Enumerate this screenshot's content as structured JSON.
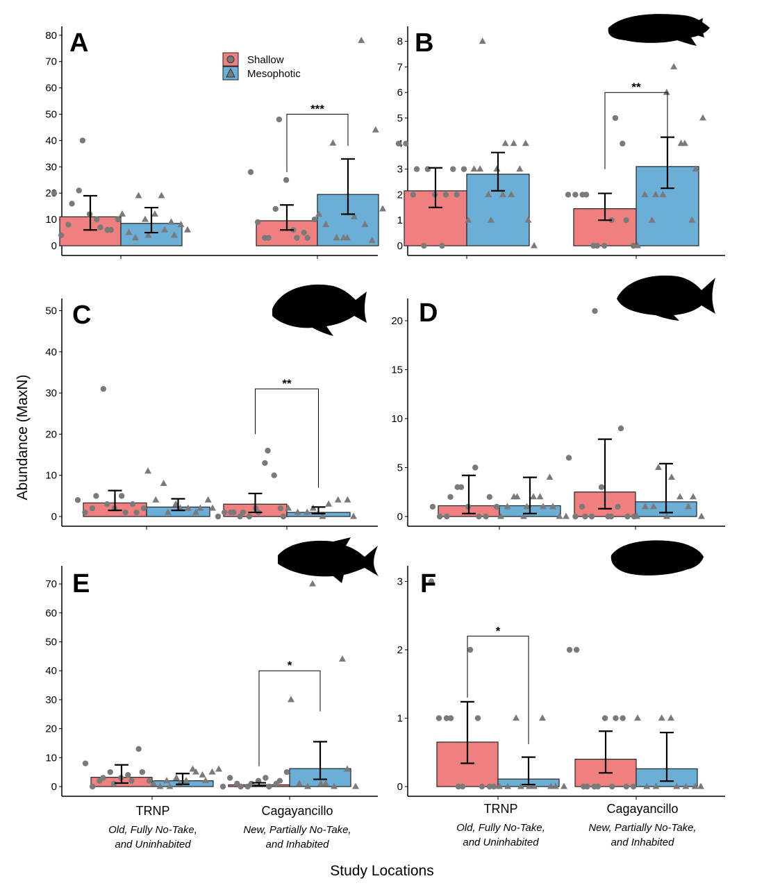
{
  "y_axis_label": "Abundance (MaxN)",
  "x_axis_label": "Study Locations",
  "legend": {
    "items": [
      {
        "label": "Shallow",
        "color": "#F08080",
        "shape": "circle"
      },
      {
        "label": "Mesophotic",
        "color": "#6BAED6",
        "shape": "triangle"
      }
    ]
  },
  "categories": [
    {
      "name": "TRNP",
      "line1": "Old, Fully No-Take,",
      "line2": "and Uninhabited"
    },
    {
      "name": "Cagayancillo",
      "line1": "New, Partially No-Take,",
      "line2": "and Inhabited"
    }
  ],
  "chart_data": [
    {
      "type": "bar",
      "panel": "A",
      "categories": [
        "TRNP",
        "Cagayancillo"
      ],
      "ylim": [
        0,
        82
      ],
      "yticks": [
        0,
        10,
        20,
        30,
        40,
        50,
        60,
        70,
        80
      ],
      "series": [
        {
          "name": "Shallow",
          "values": [
            11,
            9.5
          ],
          "err_low": [
            6,
            6
          ],
          "err_high": [
            19,
            15.5
          ],
          "points": [
            [
              20,
              4,
              8,
              16,
              21,
              40,
              12,
              10,
              7,
              6,
              6,
              10
            ],
            [
              28,
              9,
              3,
              3,
              14,
              48,
              25,
              6,
              3,
              5,
              3,
              10
            ]
          ]
        },
        {
          "name": "Mesophotic",
          "values": [
            8.5,
            19.5
          ],
          "err_low": [
            5,
            12
          ],
          "err_high": [
            14.5,
            33
          ],
          "points": [
            [
              12,
              5,
              3,
              19,
              10,
              4,
              12,
              19,
              6,
              9,
              4,
              8,
              6
            ],
            [
              12,
              8,
              39,
              3,
              3,
              3,
              11,
              78,
              8,
              2,
              44,
              14
            ]
          ]
        }
      ],
      "significance": {
        "category": "Cagayancillo",
        "label": "***",
        "bar_y": 50,
        "left_y": 28,
        "right_y": 38
      }
    },
    {
      "type": "bar",
      "panel": "B",
      "categories": [
        "TRNP",
        "Cagayancillo"
      ],
      "ylim": [
        0,
        8.4
      ],
      "yticks": [
        0,
        1,
        2,
        3,
        4,
        5,
        6,
        7,
        8
      ],
      "series": [
        {
          "name": "Shallow",
          "values": [
            2.15,
            1.45
          ],
          "err_low": [
            1.5,
            1
          ],
          "err_high": [
            3.05,
            2.05
          ],
          "points": [
            [
              4,
              4,
              2,
              3,
              0,
              3,
              2,
              0,
              2,
              3,
              2,
              3
            ],
            [
              2,
              2,
              2,
              2,
              0,
              0,
              0,
              1,
              5,
              4,
              1,
              0
            ]
          ]
        },
        {
          "name": "Mesophotic",
          "values": [
            2.8,
            3.1
          ],
          "err_low": [
            2.15,
            2.25
          ],
          "err_high": [
            3.65,
            4.25
          ],
          "points": [
            [
              1,
              3,
              3,
              8,
              2,
              1,
              3,
              2,
              4,
              2,
              4,
              3,
              4,
              1,
              0
            ],
            [
              0,
              2,
              1,
              2,
              2,
              6,
              7,
              4,
              4,
              1,
              3,
              5
            ]
          ]
        }
      ],
      "significance": {
        "category": "Cagayancillo",
        "label": "**",
        "bar_y": 6,
        "left_y": 3,
        "right_y": 4.2
      }
    },
    {
      "type": "bar",
      "panel": "C",
      "categories": [
        "TRNP",
        "Cagayancillo"
      ],
      "ylim": [
        0,
        52
      ],
      "yticks": [
        0,
        10,
        20,
        30,
        40,
        50
      ],
      "series": [
        {
          "name": "Shallow",
          "values": [
            3.3,
            3
          ],
          "err_low": [
            1.5,
            1
          ],
          "err_high": [
            6.3,
            5.6
          ],
          "points": [
            [
              4,
              1,
              2,
              5,
              31,
              3,
              2,
              5,
              1,
              3,
              1,
              2
            ],
            [
              0,
              1,
              1,
              1,
              0,
              1,
              0,
              2,
              1,
              13,
              16,
              10,
              2,
              0
            ]
          ]
        },
        {
          "name": "Mesophotic",
          "values": [
            2.3,
            1
          ],
          "err_low": [
            1.5,
            0.7
          ],
          "err_high": [
            4.3,
            2.3
          ],
          "points": [
            [
              11,
              4,
              8,
              1,
              3,
              2,
              2,
              1,
              2,
              4,
              2
            ],
            [
              2,
              1,
              1,
              2,
              0,
              3,
              4,
              4,
              0
            ]
          ]
        }
      ],
      "significance": {
        "category": "Cagayancillo",
        "label": "**",
        "bar_y": 31,
        "left_y": 20,
        "right_y": 7
      }
    },
    {
      "type": "bar",
      "panel": "D",
      "categories": [
        "TRNP",
        "Cagayancillo"
      ],
      "ylim": [
        0,
        22
      ],
      "yticks": [
        0,
        5,
        10,
        15,
        20
      ],
      "series": [
        {
          "name": "Shallow",
          "values": [
            1.1,
            2.5
          ],
          "err_low": [
            0.3,
            0.8
          ],
          "err_high": [
            4.2,
            7.9
          ],
          "points": [
            [
              1,
              0,
              0,
              2,
              3,
              3,
              1,
              5,
              0,
              0,
              2,
              1
            ],
            [
              6,
              0,
              1,
              0,
              0,
              21,
              3,
              0,
              0,
              1,
              9,
              0,
              0
            ]
          ]
        },
        {
          "name": "Mesophotic",
          "values": [
            1.1,
            1.5
          ],
          "err_low": [
            0.3,
            0.4
          ],
          "err_high": [
            4,
            5.4
          ],
          "points": [
            [
              0,
              1,
              2,
              2,
              0,
              1,
              2,
              2,
              1,
              4,
              1,
              0,
              0
            ],
            [
              0,
              1,
              1,
              5,
              0,
              4,
              2,
              1,
              2,
              0
            ]
          ]
        }
      ],
      "significance": null
    },
    {
      "type": "bar",
      "panel": "E",
      "categories": [
        "TRNP",
        "Cagayancillo"
      ],
      "ylim": [
        0,
        74
      ],
      "yticks": [
        0,
        10,
        20,
        30,
        40,
        50,
        60,
        70
      ],
      "series": [
        {
          "name": "Shallow",
          "values": [
            3.2,
            0.6
          ],
          "err_low": [
            1.2,
            0.2
          ],
          "err_high": [
            7.5,
            1.3
          ],
          "points": [
            [
              8,
              0,
              2,
              3,
              5,
              1,
              3,
              4,
              2,
              13,
              5,
              2
            ],
            [
              0,
              3,
              1,
              0,
              0,
              1,
              2,
              3,
              0,
              1,
              2,
              5
            ]
          ]
        },
        {
          "name": "Mesophotic",
          "values": [
            2,
            6.2
          ],
          "err_low": [
            0.8,
            2.5
          ],
          "err_high": [
            4.5,
            15.5
          ],
          "points": [
            [
              1,
              0,
              2,
              0,
              3,
              1,
              2,
              6,
              5,
              4,
              2,
              5,
              6
            ],
            [
              30,
              1,
              0,
              70,
              1,
              1,
              0,
              44,
              6,
              0
            ]
          ]
        }
      ],
      "significance": {
        "category": "Cagayancillo",
        "label": "*",
        "bar_y": 40,
        "left_y": 7,
        "right_y": 26
      }
    },
    {
      "type": "bar",
      "panel": "F",
      "categories": [
        "TRNP",
        "Cagayancillo"
      ],
      "ylim": [
        0,
        3.2
      ],
      "yticks": [
        0,
        1,
        2,
        3
      ],
      "series": [
        {
          "name": "Shallow",
          "values": [
            0.65,
            0.4
          ],
          "err_low": [
            0.34,
            0.2
          ],
          "err_high": [
            1.24,
            0.81
          ],
          "points": [
            [
              3,
              1,
              1,
              1,
              0,
              0,
              2,
              1,
              0,
              0,
              0
            ],
            [
              2,
              2,
              0,
              0,
              0,
              0,
              1,
              0,
              1,
              1,
              0,
              0
            ]
          ]
        },
        {
          "name": "Mesophotic",
          "values": [
            0.11,
            0.26
          ],
          "err_low": [
            0.03,
            0.08
          ],
          "err_high": [
            0.43,
            0.79
          ],
          "points": [
            [
              0,
              0,
              1,
              0,
              0,
              0,
              1,
              0,
              0,
              0
            ],
            [
              1,
              0,
              0,
              1,
              1,
              0,
              0,
              0,
              0
            ]
          ]
        }
      ],
      "significance": {
        "category": "TRNP",
        "label": "*",
        "bar_y": 2.2,
        "left_y": 1.3,
        "right_y": 0.62
      }
    }
  ]
}
